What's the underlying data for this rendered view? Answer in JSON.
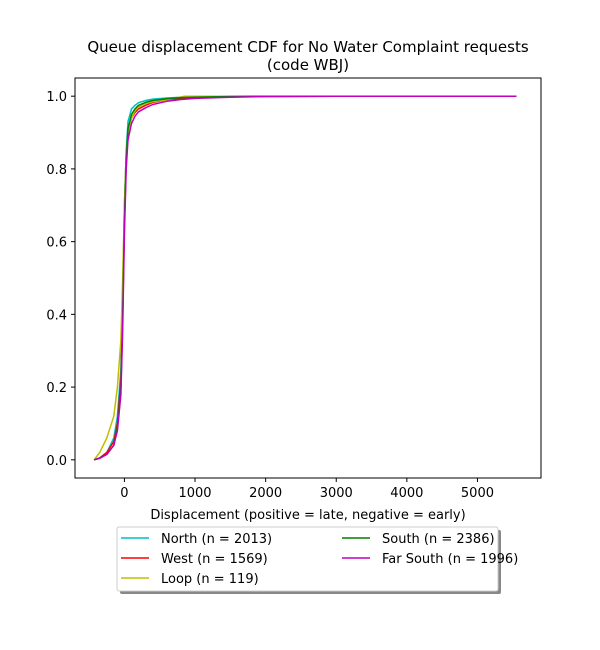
{
  "chart_data": {
    "type": "line",
    "title": [
      "Queue displacement CDF for No Water Complaint  requests",
      "(code WBJ)"
    ],
    "xlabel": "Displacement (positive = late, negative = early)",
    "ylabel": "",
    "xlim": [
      -700,
      5900
    ],
    "ylim": [
      -0.05,
      1.05
    ],
    "xticks": [
      0,
      1000,
      2000,
      3000,
      4000,
      5000
    ],
    "yticks": [
      0.0,
      0.2,
      0.4,
      0.6,
      0.8,
      1.0
    ],
    "xtick_labels": [
      "0",
      "1000",
      "2000",
      "3000",
      "4000",
      "5000"
    ],
    "ytick_labels": [
      "0.0",
      "0.2",
      "0.4",
      "0.6",
      "0.8",
      "1.0"
    ],
    "grid": false,
    "legend_placement": "below-center",
    "legend_columns": 2,
    "series": [
      {
        "name": "North (n = 2013)",
        "color": "#00bfbf",
        "x": [
          -430,
          -350,
          -250,
          -150,
          -100,
          -50,
          -25,
          0,
          25,
          50,
          100,
          150,
          200,
          300,
          400,
          600,
          800,
          1000,
          1500,
          2000,
          3000,
          4000,
          5000,
          5550
        ],
        "y": [
          0.0,
          0.005,
          0.02,
          0.06,
          0.12,
          0.25,
          0.45,
          0.7,
          0.85,
          0.93,
          0.965,
          0.975,
          0.982,
          0.988,
          0.992,
          0.995,
          0.997,
          0.998,
          0.999,
          1.0,
          1.0,
          1.0,
          1.0,
          1.0
        ]
      },
      {
        "name": "West (n = 1569)",
        "color": "#ff0000",
        "x": [
          -430,
          -350,
          -250,
          -150,
          -100,
          -50,
          -25,
          0,
          25,
          50,
          100,
          150,
          200,
          300,
          400,
          600,
          800,
          1000,
          1500,
          2000,
          3000,
          4000,
          5000,
          5550
        ],
        "y": [
          0.0,
          0.005,
          0.02,
          0.05,
          0.1,
          0.22,
          0.4,
          0.65,
          0.82,
          0.9,
          0.94,
          0.955,
          0.965,
          0.975,
          0.983,
          0.99,
          0.994,
          0.996,
          0.998,
          0.999,
          1.0,
          1.0,
          1.0,
          1.0
        ]
      },
      {
        "name": "Loop (n = 119)",
        "color": "#bfbf00",
        "x": [
          -430,
          -350,
          -250,
          -150,
          -100,
          -50,
          -25,
          0,
          25,
          50,
          100,
          150,
          200,
          300,
          400,
          600,
          850,
          1000,
          1500,
          2000,
          3000,
          4000,
          5000,
          5550
        ],
        "y": [
          0.0,
          0.02,
          0.06,
          0.12,
          0.2,
          0.33,
          0.5,
          0.7,
          0.84,
          0.9,
          0.94,
          0.96,
          0.97,
          0.98,
          0.985,
          0.99,
          1.0,
          1.0,
          1.0,
          1.0,
          1.0,
          1.0,
          1.0,
          1.0
        ]
      },
      {
        "name": "South (n = 2386)",
        "color": "#008000",
        "x": [
          -430,
          -350,
          -250,
          -150,
          -100,
          -50,
          -25,
          0,
          25,
          50,
          100,
          150,
          200,
          300,
          400,
          600,
          800,
          1000,
          1500,
          2000,
          3000,
          4000,
          5000,
          5550
        ],
        "y": [
          0.0,
          0.005,
          0.015,
          0.04,
          0.09,
          0.2,
          0.4,
          0.66,
          0.83,
          0.91,
          0.95,
          0.965,
          0.975,
          0.983,
          0.988,
          0.993,
          0.996,
          0.997,
          0.999,
          1.0,
          1.0,
          1.0,
          1.0,
          1.0
        ]
      },
      {
        "name": "Far South (n = 1996)",
        "color": "#bf00bf",
        "x": [
          -430,
          -350,
          -250,
          -150,
          -100,
          -50,
          -25,
          0,
          25,
          50,
          100,
          150,
          200,
          300,
          400,
          600,
          800,
          1000,
          1500,
          2000,
          3000,
          4000,
          5000,
          5550
        ],
        "y": [
          0.0,
          0.004,
          0.015,
          0.04,
          0.08,
          0.18,
          0.36,
          0.62,
          0.8,
          0.88,
          0.925,
          0.945,
          0.957,
          0.968,
          0.977,
          0.986,
          0.991,
          0.994,
          0.997,
          0.999,
          1.0,
          1.0,
          1.0,
          1.0
        ]
      }
    ]
  }
}
